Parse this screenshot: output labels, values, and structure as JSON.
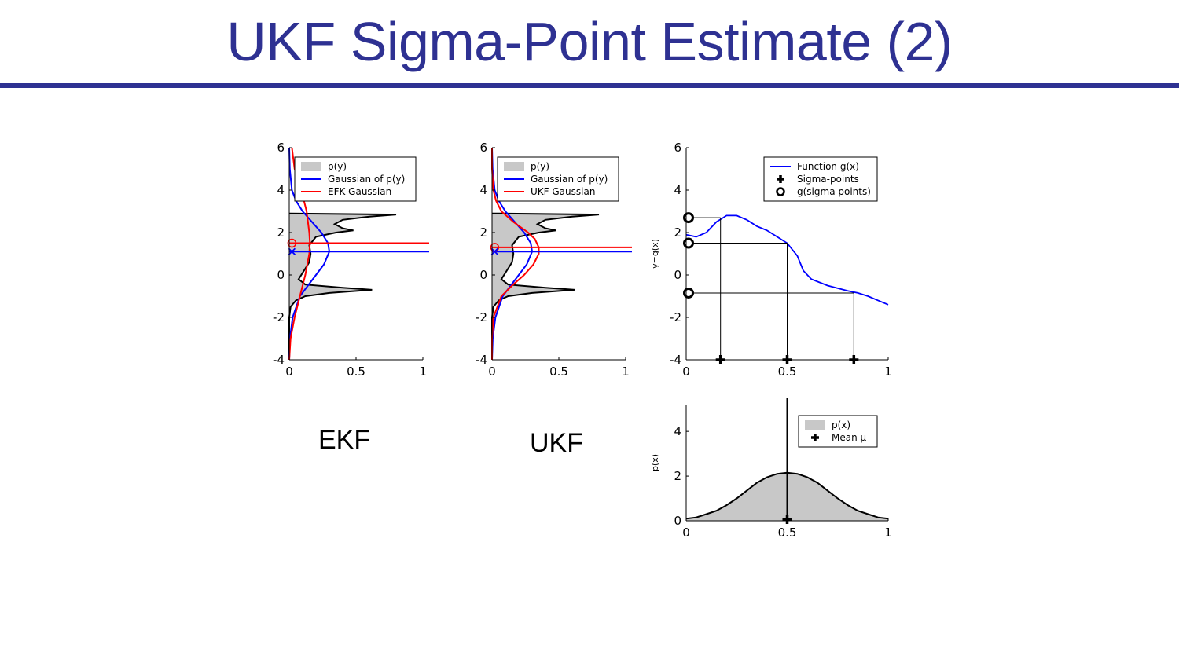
{
  "slide": {
    "title": "UKF Sigma-Point Estimate (2)"
  },
  "labels": {
    "ekf": "EKF",
    "ukf": "UKF"
  },
  "colors": {
    "title": "#2e3192",
    "fill": "#c8c8c8",
    "blue": "#0000ff",
    "red": "#ff0000",
    "black": "#000000"
  },
  "chart_data": [
    {
      "id": "ekf",
      "type": "area",
      "title": "",
      "xlabel": "",
      "ylabel": "",
      "xlim": [
        0,
        1
      ],
      "ylim": [
        -4,
        6
      ],
      "xticks": [
        {
          "v": 0,
          "label": "0"
        },
        {
          "v": 0.5,
          "label": "0.5"
        },
        {
          "v": 1,
          "label": "1"
        }
      ],
      "yticks": [
        {
          "v": 6,
          "label": "6"
        },
        {
          "v": 4,
          "label": "4"
        },
        {
          "v": 2,
          "label": "2"
        },
        {
          "v": 0,
          "label": "0"
        },
        {
          "v": -2,
          "label": "-2"
        },
        {
          "v": -4,
          "label": "-4"
        }
      ],
      "legend_position": "top-right",
      "legend": [
        {
          "label": "p(y)",
          "marker": "patch",
          "color": "#c8c8c8"
        },
        {
          "label": "Gaussian of p(y)",
          "marker": "line",
          "color": "#0000ff"
        },
        {
          "label": "EFK Gaussian",
          "marker": "line",
          "color": "#ff0000"
        }
      ],
      "series": [
        {
          "name": "p(y)",
          "kind": "density",
          "color": "#c8c8c8",
          "points": [
            [
              -4.0,
              0.0
            ],
            [
              -3.0,
              0.0
            ],
            [
              -2.0,
              0.0
            ],
            [
              -1.5,
              0.01
            ],
            [
              -1.2,
              0.05
            ],
            [
              -1.0,
              0.12
            ],
            [
              -0.85,
              0.3
            ],
            [
              -0.7,
              0.62
            ],
            [
              -0.6,
              0.4
            ],
            [
              -0.45,
              0.12
            ],
            [
              -0.2,
              0.07
            ],
            [
              0.2,
              0.11
            ],
            [
              0.6,
              0.15
            ],
            [
              1.0,
              0.16
            ],
            [
              1.4,
              0.15
            ],
            [
              1.8,
              0.2
            ],
            [
              2.0,
              0.35
            ],
            [
              2.1,
              0.48
            ],
            [
              2.2,
              0.4
            ],
            [
              2.4,
              0.34
            ],
            [
              2.6,
              0.4
            ],
            [
              2.75,
              0.6
            ],
            [
              2.85,
              0.8
            ],
            [
              2.9,
              0.0
            ]
          ]
        },
        {
          "name": "Gaussian of p(y)",
          "kind": "density",
          "color": "#0000ff",
          "points": [
            [
              -4.0,
              0.0
            ],
            [
              -3.0,
              0.005
            ],
            [
              -2.0,
              0.025
            ],
            [
              -1.0,
              0.08
            ],
            [
              -0.5,
              0.14
            ],
            [
              0.0,
              0.2
            ],
            [
              0.5,
              0.26
            ],
            [
              1.1,
              0.3
            ],
            [
              1.5,
              0.29
            ],
            [
              2.0,
              0.24
            ],
            [
              2.5,
              0.17
            ],
            [
              3.0,
              0.1
            ],
            [
              3.5,
              0.05
            ],
            [
              4.0,
              0.02
            ],
            [
              5.0,
              0.004
            ],
            [
              6.0,
              0.0
            ]
          ]
        },
        {
          "name": "EFK Gaussian",
          "kind": "density",
          "color": "#ff0000",
          "points": [
            [
              -4.0,
              0.0
            ],
            [
              -3.0,
              0.01
            ],
            [
              -2.0,
              0.04
            ],
            [
              -1.0,
              0.08
            ],
            [
              0.0,
              0.12
            ],
            [
              1.0,
              0.15
            ],
            [
              1.5,
              0.155
            ],
            [
              2.0,
              0.15
            ],
            [
              3.0,
              0.13
            ],
            [
              4.0,
              0.09
            ],
            [
              5.0,
              0.04
            ],
            [
              6.0,
              0.02
            ]
          ]
        }
      ],
      "hlines": [
        {
          "y": 1.5,
          "color": "#ff0000"
        },
        {
          "y": 1.1,
          "color": "#0000ff"
        }
      ],
      "markers": [
        {
          "x": 0.02,
          "y": 1.5,
          "shape": "circle",
          "color": "#ff0000"
        },
        {
          "x": 0.02,
          "y": 1.1,
          "shape": "x",
          "color": "#0000ff"
        }
      ]
    },
    {
      "id": "ukf",
      "type": "area",
      "title": "",
      "xlabel": "",
      "ylabel": "",
      "xlim": [
        0,
        1
      ],
      "ylim": [
        -4,
        6
      ],
      "xticks": [
        {
          "v": 0,
          "label": "0"
        },
        {
          "v": 0.5,
          "label": "0.5"
        },
        {
          "v": 1,
          "label": "1"
        }
      ],
      "yticks": [
        {
          "v": 6,
          "label": "6"
        },
        {
          "v": 4,
          "label": "4"
        },
        {
          "v": 2,
          "label": "2"
        },
        {
          "v": 0,
          "label": "0"
        },
        {
          "v": -2,
          "label": "-2"
        },
        {
          "v": -4,
          "label": "-4"
        }
      ],
      "legend_position": "top-right",
      "legend": [
        {
          "label": "p(y)",
          "marker": "patch",
          "color": "#c8c8c8"
        },
        {
          "label": "Gaussian of p(y)",
          "marker": "line",
          "color": "#0000ff"
        },
        {
          "label": "UKF Gaussian",
          "marker": "line",
          "color": "#ff0000"
        }
      ],
      "series": [
        {
          "name": "p(y)",
          "kind": "density",
          "color": "#c8c8c8",
          "points": [
            [
              -4.0,
              0.0
            ],
            [
              -3.0,
              0.0
            ],
            [
              -2.0,
              0.0
            ],
            [
              -1.5,
              0.01
            ],
            [
              -1.2,
              0.05
            ],
            [
              -1.0,
              0.12
            ],
            [
              -0.85,
              0.3
            ],
            [
              -0.7,
              0.62
            ],
            [
              -0.6,
              0.4
            ],
            [
              -0.45,
              0.12
            ],
            [
              -0.2,
              0.07
            ],
            [
              0.2,
              0.11
            ],
            [
              0.6,
              0.15
            ],
            [
              1.0,
              0.16
            ],
            [
              1.4,
              0.15
            ],
            [
              1.8,
              0.2
            ],
            [
              2.0,
              0.35
            ],
            [
              2.1,
              0.48
            ],
            [
              2.2,
              0.4
            ],
            [
              2.4,
              0.34
            ],
            [
              2.6,
              0.4
            ],
            [
              2.75,
              0.6
            ],
            [
              2.85,
              0.8
            ],
            [
              2.9,
              0.0
            ]
          ]
        },
        {
          "name": "Gaussian of p(y)",
          "kind": "density",
          "color": "#0000ff",
          "points": [
            [
              -4.0,
              0.0
            ],
            [
              -3.0,
              0.005
            ],
            [
              -2.0,
              0.025
            ],
            [
              -1.0,
              0.08
            ],
            [
              -0.5,
              0.14
            ],
            [
              0.0,
              0.2
            ],
            [
              0.5,
              0.26
            ],
            [
              1.1,
              0.3
            ],
            [
              1.5,
              0.29
            ],
            [
              2.0,
              0.24
            ],
            [
              2.5,
              0.17
            ],
            [
              3.0,
              0.1
            ],
            [
              3.5,
              0.05
            ],
            [
              4.0,
              0.02
            ],
            [
              5.0,
              0.004
            ],
            [
              6.0,
              0.0
            ]
          ]
        },
        {
          "name": "UKF Gaussian",
          "kind": "density",
          "color": "#ff0000",
          "points": [
            [
              -4.0,
              0.0
            ],
            [
              -3.0,
              0.0
            ],
            [
              -2.0,
              0.01
            ],
            [
              -1.0,
              0.07
            ],
            [
              -0.5,
              0.15
            ],
            [
              0.0,
              0.24
            ],
            [
              0.5,
              0.31
            ],
            [
              1.0,
              0.35
            ],
            [
              1.3,
              0.35
            ],
            [
              1.7,
              0.32
            ],
            [
              2.0,
              0.27
            ],
            [
              2.5,
              0.16
            ],
            [
              3.0,
              0.07
            ],
            [
              3.5,
              0.03
            ],
            [
              4.0,
              0.01
            ],
            [
              5.0,
              0.0
            ],
            [
              6.0,
              0.0
            ]
          ]
        }
      ],
      "hlines": [
        {
          "y": 1.3,
          "color": "#ff0000"
        },
        {
          "y": 1.1,
          "color": "#0000ff"
        }
      ],
      "markers": [
        {
          "x": 0.02,
          "y": 1.3,
          "shape": "circle",
          "color": "#ff0000"
        },
        {
          "x": 0.02,
          "y": 1.1,
          "shape": "x",
          "color": "#0000ff"
        }
      ]
    },
    {
      "id": "function",
      "type": "line",
      "title": "",
      "xlabel": "",
      "ylabel": "y=g(x)",
      "xlim": [
        0,
        1
      ],
      "ylim": [
        -4,
        6
      ],
      "xticks": [
        {
          "v": 0,
          "label": "0"
        },
        {
          "v": 0.5,
          "label": "0.5"
        },
        {
          "v": 1,
          "label": "1"
        }
      ],
      "yticks": [
        {
          "v": 6,
          "label": "6"
        },
        {
          "v": 4,
          "label": "4"
        },
        {
          "v": 2,
          "label": "2"
        },
        {
          "v": 0,
          "label": "0"
        },
        {
          "v": -2,
          "label": "-2"
        },
        {
          "v": -4,
          "label": "-4"
        }
      ],
      "legend_position": "top-right",
      "legend": [
        {
          "label": "Function g(x)",
          "marker": "line",
          "color": "#0000ff"
        },
        {
          "label": "Sigma-points",
          "marker": "plus",
          "color": "#000000"
        },
        {
          "label": "g(sigma points)",
          "marker": "circle",
          "color": "#000000"
        }
      ],
      "series": [
        {
          "name": "Function g(x)",
          "kind": "line",
          "color": "#0000ff",
          "points": [
            [
              0.0,
              1.9
            ],
            [
              0.05,
              1.8
            ],
            [
              0.1,
              2.0
            ],
            [
              0.15,
              2.5
            ],
            [
              0.2,
              2.8
            ],
            [
              0.25,
              2.8
            ],
            [
              0.3,
              2.6
            ],
            [
              0.35,
              2.3
            ],
            [
              0.4,
              2.1
            ],
            [
              0.45,
              1.8
            ],
            [
              0.5,
              1.5
            ],
            [
              0.55,
              0.9
            ],
            [
              0.58,
              0.2
            ],
            [
              0.62,
              -0.2
            ],
            [
              0.7,
              -0.5
            ],
            [
              0.8,
              -0.75
            ],
            [
              0.85,
              -0.85
            ],
            [
              0.9,
              -1.0
            ],
            [
              0.95,
              -1.2
            ],
            [
              1.0,
              -1.4
            ]
          ]
        }
      ],
      "sigma_points": [
        {
          "x": 0.17,
          "gx": 2.7
        },
        {
          "x": 0.5,
          "gx": 1.5
        },
        {
          "x": 0.83,
          "gx": -0.85
        }
      ]
    },
    {
      "id": "prior",
      "type": "area",
      "title": "",
      "xlabel": "",
      "ylabel": "p(x)",
      "xlim": [
        0,
        1
      ],
      "ylim": [
        0,
        5.2
      ],
      "xticks": [
        {
          "v": 0,
          "label": "0"
        },
        {
          "v": 0.5,
          "label": "0.5"
        },
        {
          "v": 1,
          "label": "1"
        }
      ],
      "yticks": [
        {
          "v": 4,
          "label": "4"
        },
        {
          "v": 2,
          "label": "2"
        },
        {
          "v": 0,
          "label": "0"
        }
      ],
      "legend_position": "top-right",
      "legend": [
        {
          "label": "p(x)",
          "marker": "patch",
          "color": "#c8c8c8"
        },
        {
          "label": "Mean μ",
          "marker": "plus",
          "color": "#000000"
        }
      ],
      "series": [
        {
          "name": "p(x)",
          "kind": "area",
          "color": "#c8c8c8",
          "points": [
            [
              0.0,
              0.1
            ],
            [
              0.05,
              0.15
            ],
            [
              0.1,
              0.3
            ],
            [
              0.15,
              0.45
            ],
            [
              0.2,
              0.7
            ],
            [
              0.25,
              1.0
            ],
            [
              0.3,
              1.35
            ],
            [
              0.35,
              1.7
            ],
            [
              0.4,
              1.95
            ],
            [
              0.45,
              2.1
            ],
            [
              0.5,
              2.15
            ],
            [
              0.55,
              2.1
            ],
            [
              0.6,
              1.95
            ],
            [
              0.65,
              1.7
            ],
            [
              0.7,
              1.35
            ],
            [
              0.75,
              1.0
            ],
            [
              0.8,
              0.7
            ],
            [
              0.85,
              0.45
            ],
            [
              0.9,
              0.3
            ],
            [
              0.95,
              0.15
            ],
            [
              1.0,
              0.1
            ]
          ]
        }
      ],
      "mean": {
        "x": 0.5
      }
    }
  ]
}
